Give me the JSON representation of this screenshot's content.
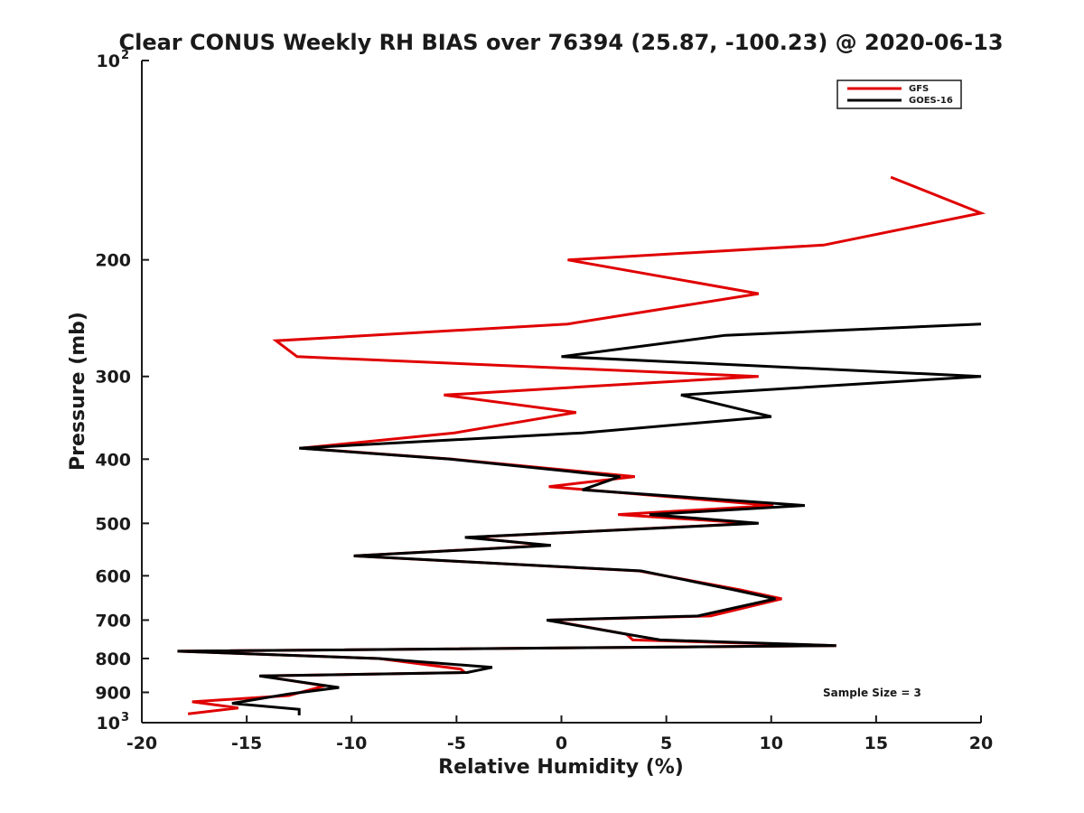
{
  "chart_data": {
    "type": "line",
    "title": "Clear CONUS Weekly RH BIAS over 76394 (25.87, -100.23) @ 2020-06-13",
    "xlabel": "Relative Humidity (%)",
    "ylabel": "Pressure (mb)",
    "xlim": [
      -20,
      20
    ],
    "ylim": [
      100,
      1000
    ],
    "y_scale": "log",
    "y_reversed": true,
    "grid": false,
    "legend_position": "top-right",
    "x_ticks": [
      -20,
      -15,
      -10,
      -5,
      0,
      5,
      10,
      15,
      20
    ],
    "x_tick_labels": [
      "-20",
      "-15",
      "-10",
      "-5",
      "0",
      "5",
      "10",
      "15",
      "20"
    ],
    "y_ticks": [
      200,
      300,
      400,
      500,
      600,
      700,
      800,
      900
    ],
    "y_tick_labels": [
      "200",
      "300",
      "400",
      "500",
      "600",
      "700",
      "800",
      "900"
    ],
    "y_limit_labels": [
      {
        "base": "10",
        "exp": "2",
        "value": 100
      },
      {
        "base": "10",
        "exp": "3",
        "value": 1000
      }
    ],
    "annotation": "Sample Size = 3",
    "series": [
      {
        "name": "GFS",
        "color": "#e00000",
        "points": [
          [
            15.7,
            150
          ],
          [
            20,
            170
          ],
          [
            12.5,
            190
          ],
          [
            0.3,
            200
          ],
          [
            9.4,
            225
          ],
          [
            0.3,
            250
          ],
          [
            -13.6,
            265
          ],
          [
            -12.6,
            280
          ],
          [
            9.4,
            300
          ],
          [
            -5.6,
            320
          ],
          [
            0.7,
            340
          ],
          [
            -5.1,
            365
          ],
          [
            -12.4,
            385
          ],
          [
            -5.2,
            400
          ],
          [
            3.5,
            425
          ],
          [
            -0.6,
            440
          ],
          [
            10.1,
            470
          ],
          [
            2.7,
            485
          ],
          [
            9.1,
            500
          ],
          [
            -4.4,
            525
          ],
          [
            -0.7,
            540
          ],
          [
            -9.9,
            560
          ],
          [
            3.7,
            590
          ],
          [
            8.5,
            630
          ],
          [
            10.5,
            650
          ],
          [
            7.1,
            690
          ],
          [
            -0.6,
            700
          ],
          [
            3.1,
            735
          ],
          [
            3.4,
            750
          ],
          [
            13.1,
            765
          ],
          [
            -18.3,
            780
          ],
          [
            -8.7,
            800
          ],
          [
            -4.8,
            830
          ],
          [
            -4.6,
            840
          ],
          [
            -14.3,
            850
          ],
          [
            -11.3,
            880
          ],
          [
            -13,
            910
          ],
          [
            -17.6,
            930
          ],
          [
            -15.4,
            950
          ],
          [
            -17.8,
            970
          ]
        ]
      },
      {
        "name": "GOES-16",
        "color": "#000000",
        "points": [
          [
            20,
            250
          ],
          [
            7.8,
            260
          ],
          [
            0,
            280
          ],
          [
            20,
            300
          ],
          [
            5.7,
            320
          ],
          [
            10,
            345
          ],
          [
            1,
            365
          ],
          [
            -12.5,
            385
          ],
          [
            -5.3,
            400
          ],
          [
            2.8,
            425
          ],
          [
            1,
            445
          ],
          [
            11.6,
            470
          ],
          [
            4.2,
            485
          ],
          [
            9.4,
            500
          ],
          [
            -4.6,
            525
          ],
          [
            -0.5,
            540
          ],
          [
            -9.9,
            560
          ],
          [
            3.8,
            590
          ],
          [
            8.2,
            630
          ],
          [
            10.2,
            650
          ],
          [
            6.5,
            690
          ],
          [
            -0.7,
            700
          ],
          [
            3.1,
            735
          ],
          [
            4.7,
            750
          ],
          [
            13.1,
            765
          ],
          [
            -18.3,
            780
          ],
          [
            -8.7,
            800
          ],
          [
            -3.3,
            825
          ],
          [
            -4.5,
            840
          ],
          [
            -14.4,
            850
          ],
          [
            -10.6,
            885
          ],
          [
            -13,
            905
          ],
          [
            -15.7,
            935
          ],
          [
            -12.5,
            955
          ],
          [
            -12.5,
            975
          ]
        ]
      }
    ]
  }
}
